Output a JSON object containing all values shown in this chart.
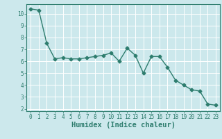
{
  "title": "",
  "xlabel": "Humidex (Indice chaleur)",
  "x": [
    0,
    1,
    2,
    3,
    4,
    5,
    6,
    7,
    8,
    9,
    10,
    11,
    12,
    13,
    14,
    15,
    16,
    17,
    18,
    19,
    20,
    21,
    22,
    23
  ],
  "y": [
    10.4,
    10.3,
    7.5,
    6.2,
    6.3,
    6.2,
    6.2,
    6.3,
    6.4,
    6.5,
    6.7,
    6.0,
    7.1,
    6.5,
    5.0,
    6.4,
    6.4,
    5.5,
    4.4,
    4.0,
    3.6,
    3.5,
    2.4,
    2.3
  ],
  "line_color": "#2e7d6e",
  "marker": "D",
  "marker_size": 2.5,
  "bg_color": "#cce8ec",
  "grid_color": "#ffffff",
  "ylim": [
    1.8,
    10.8
  ],
  "xlim": [
    -0.5,
    23.5
  ],
  "yticks": [
    2,
    3,
    4,
    5,
    6,
    7,
    8,
    9,
    10
  ],
  "xticks": [
    0,
    1,
    2,
    3,
    4,
    5,
    6,
    7,
    8,
    9,
    10,
    11,
    12,
    13,
    14,
    15,
    16,
    17,
    18,
    19,
    20,
    21,
    22,
    23
  ],
  "tick_fontsize": 5.5,
  "xlabel_fontsize": 7.5,
  "spine_color": "#2e7d6e"
}
